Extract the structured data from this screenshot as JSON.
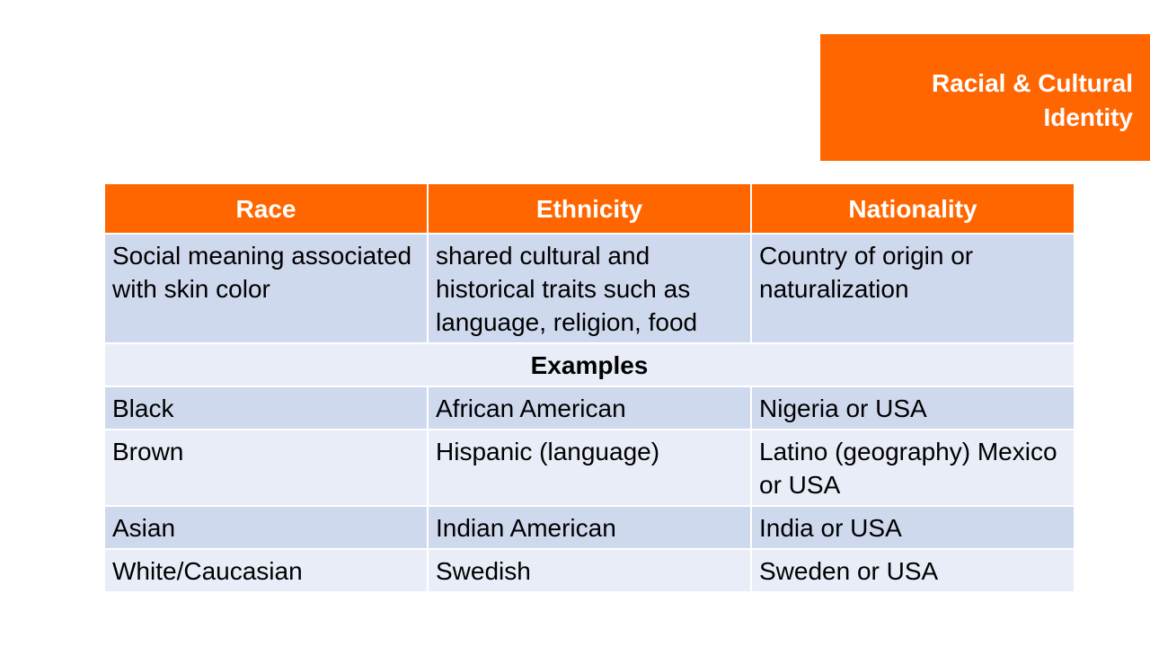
{
  "title": {
    "line1": "Racial & Cultural",
    "line2": "Identity"
  },
  "table": {
    "headers": [
      "Race",
      "Ethnicity",
      "Nationality"
    ],
    "definitions": [
      "Social meaning associated with skin color",
      "shared cultural and historical traits such as language, religion, food",
      "Country of origin or naturalization"
    ],
    "examples_label": "Examples",
    "rows": [
      [
        "Black",
        "African American",
        "Nigeria or USA"
      ],
      [
        "Brown",
        "Hispanic (language)",
        "Latino (geography) Mexico or USA"
      ],
      [
        "Asian",
        "Indian American",
        "India or USA"
      ],
      [
        "White/Caucasian",
        "Swedish",
        "Sweden or USA"
      ]
    ]
  },
  "colors": {
    "accent": "#ff6600",
    "row_dark": "#cfd9ee",
    "row_light": "#e8edf7"
  }
}
